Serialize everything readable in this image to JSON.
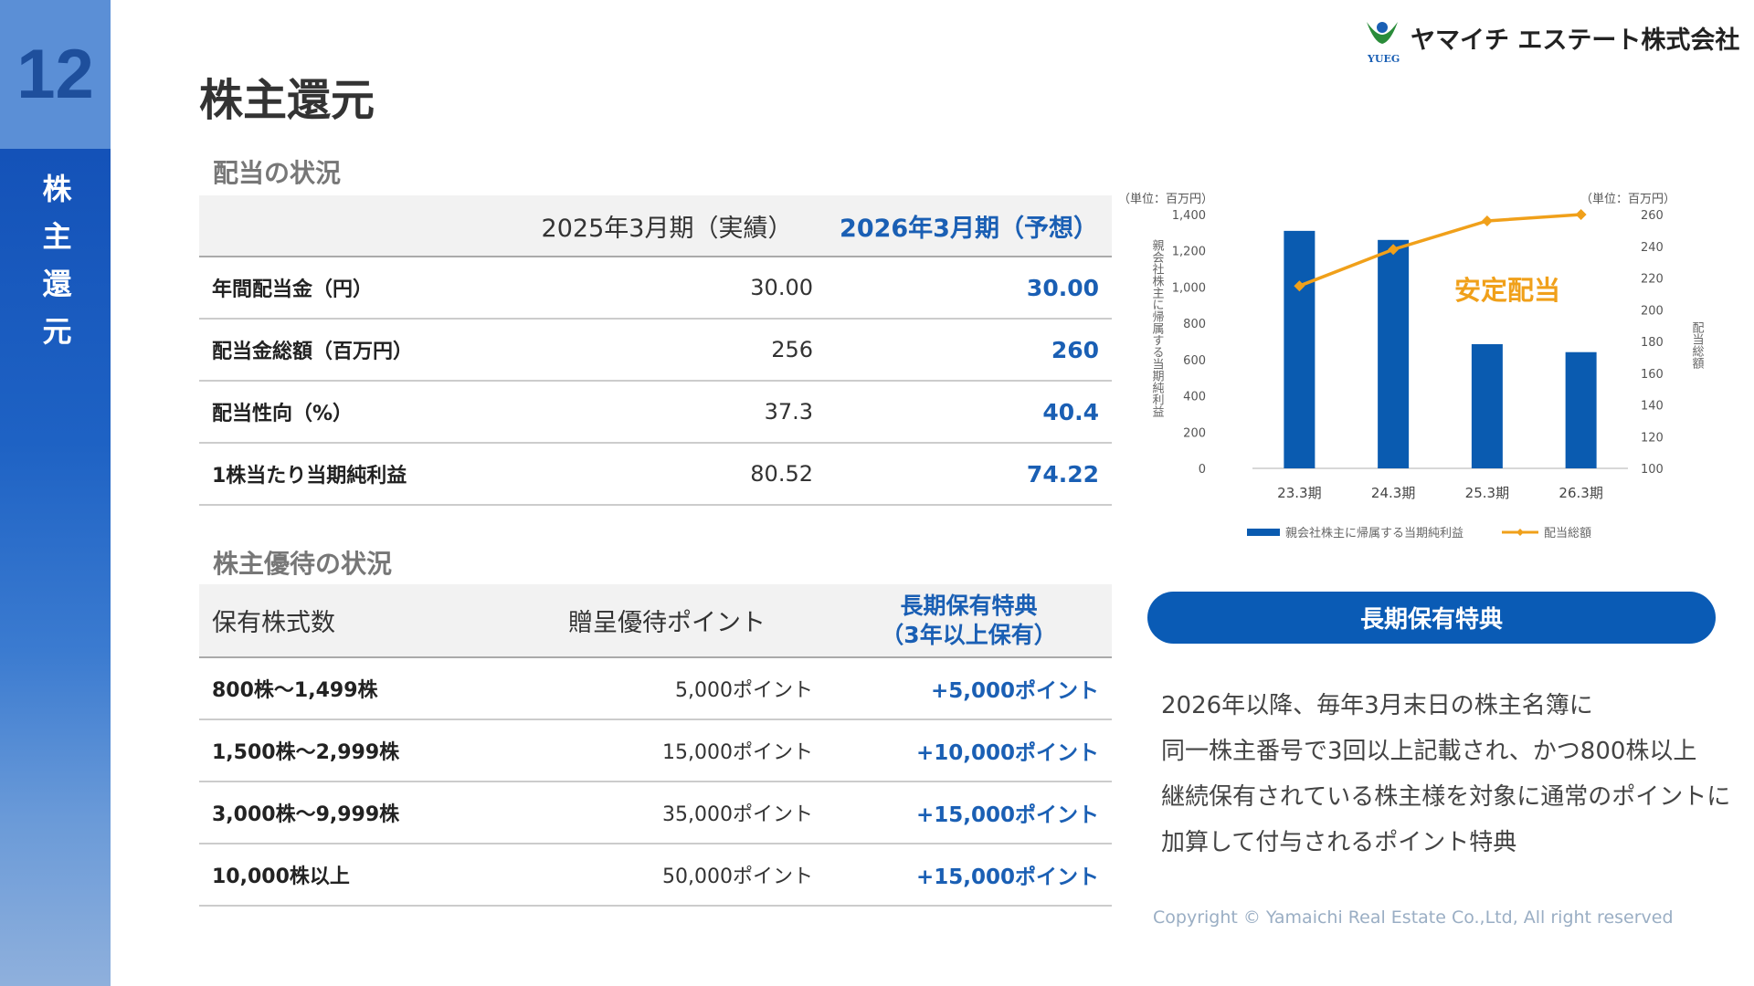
{
  "sidebar": {
    "page_number": "12",
    "section": "株主還元"
  },
  "header": {
    "title": "株主還元",
    "company": "ヤマイチ エステート株式会社",
    "logo_text": "YUEG"
  },
  "dividend_table": {
    "heading": "配当の状況",
    "columns": [
      "2025年3月期（実績）",
      "2026年3月期（予想）"
    ],
    "rows": [
      [
        "年間配当金（円）",
        "30.00",
        "30.00"
      ],
      [
        "配当金総額（百万円）",
        "256",
        "260"
      ],
      [
        "配当性向（%）",
        "37.3",
        "40.4"
      ],
      [
        "1株当たり当期純利益",
        "80.52",
        "74.22"
      ]
    ]
  },
  "benefit_table": {
    "heading": "株主優待の状況",
    "columns": [
      "保有株式数",
      "贈呈優待ポイント",
      [
        "長期保有特典",
        "（3年以上保有）"
      ]
    ],
    "rows": [
      [
        "800株～1,499株",
        "5,000ポイント",
        "+5,000ポイント"
      ],
      [
        "1,500株～2,999株",
        "15,000ポイント",
        "+10,000ポイント"
      ],
      [
        "3,000株～9,999株",
        "35,000ポイント",
        "+15,000ポイント"
      ],
      [
        "10,000株以上",
        "50,000ポイント",
        "+15,000ポイント"
      ]
    ]
  },
  "chart_data": {
    "type": "combo",
    "unit_left": "（単位：百万円）",
    "unit_right": "（単位：百万円）",
    "ylabel": "親会社株主に帰属する当期純利益",
    "y2label": "配当総額",
    "annotation": "安定配当",
    "categories": [
      "23.3期",
      "24.3期",
      "25.3期",
      "26.3期"
    ],
    "series": [
      {
        "name": "親会社株主に帰属する当期純利益",
        "kind": "bar",
        "color": "#0a5bb0",
        "values": [
          1310,
          1260,
          685,
          641
        ]
      },
      {
        "name": "配当総額",
        "kind": "line",
        "axis": "y2",
        "color": "#f0a01a",
        "values": [
          215,
          238,
          256,
          260
        ]
      }
    ],
    "ylim": [
      0,
      1400
    ],
    "yticks": [
      0,
      200,
      400,
      600,
      800,
      {
        "value": 1000,
        "label": "1,000"
      },
      {
        "value": 1200,
        "label": "1,200"
      },
      {
        "value": 1400,
        "label": "1,400"
      }
    ],
    "y2lim": [
      100,
      260
    ],
    "y2ticks": [
      100,
      120,
      140,
      160,
      180,
      200,
      220,
      240,
      260
    ],
    "grid": false
  },
  "benefit": {
    "title": "長期保有特典",
    "lines": [
      "2026年以降、毎年3月末日の株主名簿に",
      "同一株主番号で3回以上記載され、かつ800株以上",
      "継続保有されている株主様を対象に通常のポイントに",
      "加算して付与されるポイント特典"
    ]
  },
  "footer": {
    "copyright": "Copyright © Yamaichi Real Estate Co.,Ltd, All right reserved"
  }
}
